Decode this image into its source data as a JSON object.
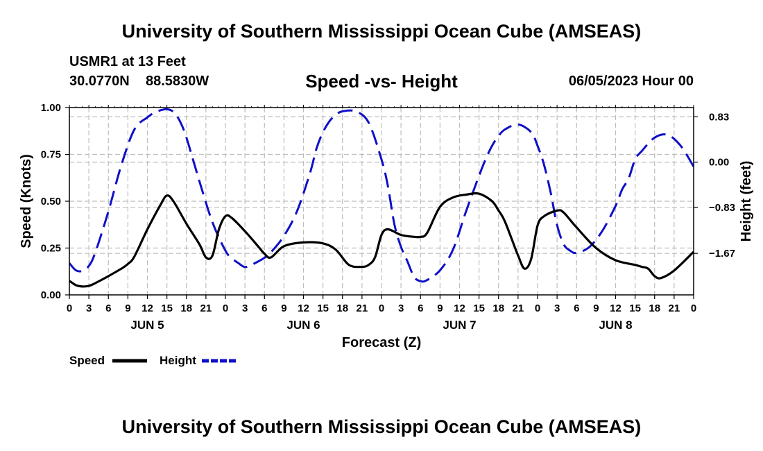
{
  "header": {
    "title": "University of Southern Mississippi Ocean Cube (AMSEAS)",
    "station": "USMR1 at 13 Feet",
    "lat": "30.0770N",
    "lon": "88.5830W",
    "chart_title": "Speed -vs- Height",
    "datetime": "06/05/2023 Hour 00"
  },
  "footer": {
    "title": "University of Southern Mississippi Ocean Cube (AMSEAS)"
  },
  "colors": {
    "speed": "#000000",
    "height": "#1010c8",
    "grid": "#bdbdbd"
  },
  "chart_data": {
    "type": "line",
    "title": "Speed -vs- Height",
    "xlabel": "Forecast (Z)",
    "ylabel": "Speed (Knots)",
    "y2label": "Height (feet)",
    "xlim": [
      0,
      96
    ],
    "ylim": [
      0,
      1
    ],
    "y2lim": [
      -2.43,
      1.0
    ],
    "yticks": [
      0,
      0.25,
      0.5,
      0.75,
      1.0
    ],
    "yticklabels": [
      "0.00",
      "0.25",
      "0.50",
      "0.75",
      "1.00"
    ],
    "y2ticks": [
      0.83,
      0.0,
      -0.83,
      -1.67
    ],
    "y2ticklabels": [
      "0.83",
      "0.00",
      "−0.83",
      "−1.67"
    ],
    "xticks": [
      0,
      3,
      6,
      9,
      12,
      15,
      18,
      21,
      24,
      27,
      30,
      33,
      36,
      39,
      42,
      45,
      48,
      51,
      54,
      57,
      60,
      63,
      66,
      69,
      72,
      75,
      78,
      81,
      84,
      87,
      90,
      93,
      96
    ],
    "xticklabels": [
      "0",
      "3",
      "6",
      "9",
      "12",
      "15",
      "18",
      "21",
      "0",
      "3",
      "6",
      "9",
      "12",
      "15",
      "18",
      "21",
      "0",
      "3",
      "6",
      "9",
      "12",
      "15",
      "18",
      "21",
      "0",
      "3",
      "6",
      "9",
      "12",
      "15",
      "18",
      "21",
      "0"
    ],
    "day_labels": [
      {
        "label": "JUN 5",
        "x": 12
      },
      {
        "label": "JUN 6",
        "x": 36
      },
      {
        "label": "JUN 7",
        "x": 60
      },
      {
        "label": "JUN 8",
        "x": 84
      }
    ],
    "legend": [
      {
        "name": "Speed",
        "style": "solid"
      },
      {
        "name": "Height",
        "style": "dashed"
      }
    ],
    "series": [
      {
        "name": "Speed",
        "axis": "left",
        "style": "solid",
        "x": [
          0,
          1,
          2,
          3,
          4,
          6,
          8,
          9,
          10,
          12,
          14,
          15,
          16,
          18,
          20,
          21,
          22,
          23,
          24,
          25,
          27,
          29,
          30,
          31,
          33,
          36,
          39,
          41,
          43,
          45,
          46,
          47,
          48,
          49,
          51,
          53,
          54,
          55,
          57,
          59,
          61,
          63,
          65,
          66,
          67,
          69,
          70,
          71,
          72,
          73,
          75,
          76,
          78,
          81,
          84,
          87,
          88,
          89,
          90,
          91,
          93,
          96
        ],
        "y": [
          0.075,
          0.052,
          0.045,
          0.048,
          0.063,
          0.1,
          0.14,
          0.165,
          0.205,
          0.35,
          0.48,
          0.53,
          0.5,
          0.38,
          0.27,
          0.2,
          0.21,
          0.35,
          0.42,
          0.41,
          0.34,
          0.26,
          0.22,
          0.2,
          0.26,
          0.28,
          0.275,
          0.24,
          0.16,
          0.15,
          0.16,
          0.2,
          0.32,
          0.35,
          0.32,
          0.31,
          0.31,
          0.33,
          0.47,
          0.52,
          0.535,
          0.54,
          0.5,
          0.45,
          0.39,
          0.21,
          0.14,
          0.19,
          0.37,
          0.42,
          0.45,
          0.44,
          0.36,
          0.25,
          0.185,
          0.16,
          0.15,
          0.14,
          0.1,
          0.09,
          0.13,
          0.23
        ]
      },
      {
        "name": "Height",
        "axis": "right",
        "style": "dashed",
        "x": [
          0,
          1,
          2,
          3,
          4,
          6,
          8,
          10,
          12,
          13,
          14,
          15,
          16,
          17,
          18,
          20,
          22,
          24,
          25,
          26,
          27,
          28,
          29,
          30,
          31,
          33,
          35,
          37,
          38,
          39,
          40,
          41,
          42,
          44,
          46,
          48,
          49,
          50,
          51,
          52,
          53,
          54,
          55,
          57,
          59,
          61,
          63,
          64,
          65,
          66,
          67,
          69,
          71,
          72,
          73,
          74,
          75,
          76,
          77,
          78,
          80,
          82,
          84,
          85,
          86,
          87,
          88,
          90,
          92,
          94,
          96
        ],
        "y": [
          -1.85,
          -1.98,
          -1.99,
          -1.9,
          -1.65,
          -0.9,
          -0.05,
          0.6,
          0.82,
          0.9,
          0.95,
          0.97,
          0.92,
          0.75,
          0.45,
          -0.35,
          -1.1,
          -1.62,
          -1.76,
          -1.85,
          -1.92,
          -1.88,
          -1.82,
          -1.75,
          -1.65,
          -1.35,
          -0.9,
          -0.2,
          0.25,
          0.55,
          0.75,
          0.87,
          0.93,
          0.93,
          0.73,
          0.05,
          -0.45,
          -1.15,
          -1.55,
          -1.82,
          -2.1,
          -2.18,
          -2.16,
          -1.98,
          -1.6,
          -0.9,
          -0.25,
          0.05,
          0.3,
          0.48,
          0.6,
          0.69,
          0.55,
          0.3,
          -0.05,
          -0.55,
          -1.15,
          -1.5,
          -1.62,
          -1.66,
          -1.55,
          -1.25,
          -0.8,
          -0.5,
          -0.3,
          0.05,
          0.2,
          0.45,
          0.5,
          0.3,
          -0.08
        ]
      }
    ]
  }
}
